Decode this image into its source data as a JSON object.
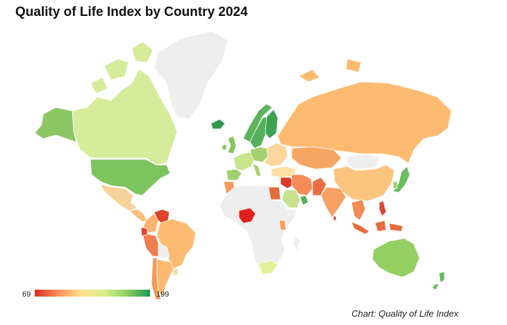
{
  "title": "Quality of Life Index by Country 2024",
  "legend": {
    "min_label": "69",
    "max_label": "199",
    "min": 69,
    "max": 199,
    "scale_colors": [
      "#d7301f",
      "#fc8d59",
      "#fee08b",
      "#d9ef8b",
      "#91cf60",
      "#1a9850"
    ]
  },
  "credit": "Chart: Quality of Life Index",
  "colors": {
    "no_data": "#eeeeee",
    "border": "#ffffff",
    "background": "#ffffff"
  },
  "regions": [
    {
      "name": "Greenland",
      "color": "#eeeeee"
    },
    {
      "name": "Canada",
      "color": "#d7ec9a"
    },
    {
      "name": "Alaska",
      "color": "#8cc766"
    },
    {
      "name": "United States",
      "color": "#7dc45f"
    },
    {
      "name": "Mexico",
      "color": "#f7d39a"
    },
    {
      "name": "Central America",
      "color": "#fdbe78"
    },
    {
      "name": "Colombia",
      "color": "#fbb270"
    },
    {
      "name": "Venezuela",
      "color": "#e0442d"
    },
    {
      "name": "Peru",
      "color": "#e0442d"
    },
    {
      "name": "Ecuador",
      "color": "#f07d4f"
    },
    {
      "name": "Brazil",
      "color": "#fdbb72"
    },
    {
      "name": "Bolivia",
      "color": "#eeeeee"
    },
    {
      "name": "Chile",
      "color": "#f29a5d"
    },
    {
      "name": "Argentina",
      "color": "#fdbb72"
    },
    {
      "name": "Uruguay",
      "color": "#fad9a0"
    },
    {
      "name": "Iceland",
      "color": "#2e9a4f"
    },
    {
      "name": "Norway",
      "color": "#5db35c"
    },
    {
      "name": "Sweden",
      "color": "#56b05b"
    },
    {
      "name": "Finland",
      "color": "#3fa152"
    },
    {
      "name": "United Kingdom",
      "color": "#86c763"
    },
    {
      "name": "Western Europe",
      "color": "#c8e58b"
    },
    {
      "name": "Central Europe",
      "color": "#a3d26f"
    },
    {
      "name": "Eastern Europe",
      "color": "#fcd69b"
    },
    {
      "name": "Iberia",
      "color": "#9fd06d"
    },
    {
      "name": "Russia",
      "color": "#fdbb72"
    },
    {
      "name": "Kazakhstan",
      "color": "#f6a562"
    },
    {
      "name": "Mongolia",
      "color": "#eeeeee"
    },
    {
      "name": "China",
      "color": "#fcc47e"
    },
    {
      "name": "Japan",
      "color": "#6bbd60"
    },
    {
      "name": "South Korea",
      "color": "#9fd06d"
    },
    {
      "name": "Turkey",
      "color": "#fde0a2"
    },
    {
      "name": "Iran",
      "color": "#db3a28"
    },
    {
      "name": "Middle East",
      "color": "#f38c55"
    },
    {
      "name": "Saudi Arabia",
      "color": "#c6e28d"
    },
    {
      "name": "Arabian Gulf",
      "color": "#5aaf5a"
    },
    {
      "name": "Egypt",
      "color": "#e46b3c"
    },
    {
      "name": "Morocco",
      "color": "#f89a5b"
    },
    {
      "name": "Africa (no data)",
      "color": "#eeeeee"
    },
    {
      "name": "Nigeria",
      "color": "#e0201c"
    },
    {
      "name": "Kenya",
      "color": "#f79d5e"
    },
    {
      "name": "South Africa",
      "color": "#e5f09a"
    },
    {
      "name": "Pakistan",
      "color": "#ea6e42"
    },
    {
      "name": "India",
      "color": "#f6a064"
    },
    {
      "name": "Sri Lanka",
      "color": "#e0442d"
    },
    {
      "name": "Southeast Asia",
      "color": "#f38c55"
    },
    {
      "name": "Indonesia",
      "color": "#ea6a40"
    },
    {
      "name": "Philippines",
      "color": "#e0442d"
    },
    {
      "name": "Australia",
      "color": "#94cf62"
    },
    {
      "name": "New Zealand",
      "color": "#6bbd60"
    }
  ]
}
